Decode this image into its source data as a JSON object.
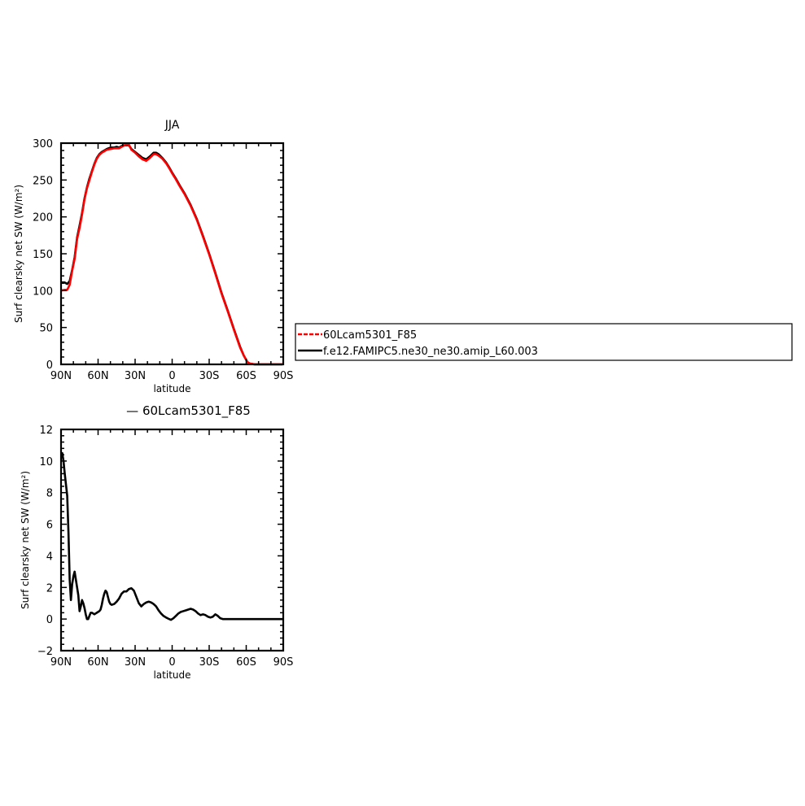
{
  "chart_data": [
    {
      "type": "line",
      "title": "JJA",
      "xlabel": "latitude",
      "ylabel": "Surf clearsky net SW (W/m²)",
      "xlim": [
        90,
        -90
      ],
      "ylim": [
        0,
        300
      ],
      "x_ticks": [
        90,
        60,
        30,
        0,
        -30,
        -60,
        -90
      ],
      "x_tick_labels": [
        "90N",
        "60N",
        "30N",
        "0",
        "30S",
        "60S",
        "90S"
      ],
      "y_ticks": [
        0,
        50,
        100,
        150,
        200,
        250,
        300
      ],
      "y_tick_labels": [
        "0",
        "50",
        "100",
        "150",
        "200",
        "250",
        "300"
      ],
      "legend": {
        "placement": "right",
        "entries": [
          "60Lcam5301_F85",
          "f.e12.FAMIPC5.ne30_ne30.amip_L60.003"
        ]
      },
      "series": [
        {
          "name": "f.e12.FAMIPC5.ne30_ne30.amip_L60.003",
          "color": "#000000",
          "dash": "solid",
          "x": [
            89,
            87,
            85,
            83,
            81,
            79,
            77,
            75,
            73,
            71,
            69,
            67,
            65,
            63,
            61,
            59,
            57,
            55,
            53,
            50,
            47,
            45,
            43,
            40,
            37,
            35,
            33,
            30,
            27,
            24,
            21,
            18,
            15,
            13,
            11,
            8,
            5,
            2,
            0,
            -3,
            -6,
            -10,
            -15,
            -20,
            -25,
            -30,
            -35,
            -40,
            -45,
            -50,
            -55,
            -58,
            -61,
            -63,
            -65,
            -67,
            -70,
            -75,
            -80,
            -85,
            -89
          ],
          "y": [
            111,
            111,
            109,
            113,
            128,
            145,
            172,
            188,
            205,
            225,
            240,
            252,
            262,
            272,
            280,
            285,
            288,
            290,
            292,
            294,
            294,
            295,
            294,
            297,
            297,
            297,
            292,
            288,
            284,
            280,
            278,
            282,
            287,
            287,
            285,
            280,
            274,
            266,
            260,
            252,
            243,
            232,
            216,
            197,
            174,
            150,
            124,
            97,
            73,
            48,
            24,
            12,
            3,
            1,
            0.5,
            0,
            0,
            0,
            0,
            0,
            0
          ]
        },
        {
          "name": "60Lcam5301_F85",
          "color": "#ff0000",
          "dash": "dashed",
          "x": [
            89,
            87,
            85,
            83,
            81,
            79,
            77,
            75,
            73,
            71,
            69,
            67,
            65,
            63,
            61,
            59,
            57,
            55,
            53,
            50,
            47,
            45,
            43,
            40,
            37,
            35,
            33,
            30,
            27,
            24,
            21,
            18,
            15,
            13,
            11,
            8,
            5,
            2,
            0,
            -3,
            -6,
            -10,
            -15,
            -20,
            -25,
            -30,
            -35,
            -40,
            -45,
            -50,
            -55,
            -58,
            -61,
            -63,
            -65,
            -67,
            -70,
            -75,
            -80,
            -85,
            -89
          ],
          "y": [
            100.5,
            101,
            101,
            108,
            127,
            143,
            170,
            185,
            203,
            224,
            239,
            250,
            261,
            271,
            279,
            284,
            287,
            289,
            291,
            292,
            293,
            293,
            293,
            296,
            298,
            298,
            291,
            287,
            282,
            278,
            276,
            280,
            285,
            285,
            283,
            279,
            273,
            265,
            259,
            251,
            242,
            231,
            215,
            196,
            173,
            149,
            123,
            96,
            72,
            47,
            23,
            12,
            3,
            1,
            0.5,
            0,
            0,
            0,
            0,
            0,
            0
          ]
        }
      ]
    },
    {
      "type": "line",
      "title": "— 60Lcam5301_F85",
      "xlabel": "latitude",
      "ylabel": "Surf clearsky net SW (W/m²)",
      "xlim": [
        90,
        -90
      ],
      "ylim": [
        -2,
        12
      ],
      "x_ticks": [
        90,
        60,
        30,
        0,
        -30,
        -60,
        -90
      ],
      "x_tick_labels": [
        "90N",
        "60N",
        "30N",
        "0",
        "30S",
        "60S",
        "90S"
      ],
      "y_ticks": [
        -2,
        0,
        2,
        4,
        6,
        8,
        10,
        12
      ],
      "y_tick_labels": [
        "−2",
        "0",
        "2",
        "4",
        "6",
        "8",
        "10",
        "12"
      ],
      "series": [
        {
          "color": "#000000",
          "dash": "solid",
          "x": [
            89,
            88,
            87,
            86,
            85,
            84,
            83,
            82,
            81,
            80,
            79,
            78,
            77,
            76,
            75,
            74,
            73,
            72,
            71,
            70,
            69,
            68,
            67,
            66,
            65,
            64,
            63,
            62,
            61,
            60,
            59,
            58,
            57,
            56,
            55,
            54,
            53,
            52,
            51,
            50,
            49,
            47,
            45,
            43,
            41,
            39,
            37,
            35,
            33,
            31,
            29,
            27,
            25,
            23,
            21,
            19,
            17,
            15,
            13,
            11,
            9,
            7,
            5,
            3,
            1,
            -1,
            -3,
            -5,
            -7,
            -9,
            -11,
            -13,
            -15,
            -17,
            -19,
            -21,
            -23,
            -25,
            -27,
            -29,
            -31,
            -33,
            -35,
            -37,
            -39,
            -41,
            -43,
            -45,
            -47,
            -49,
            -51,
            -53,
            -55,
            -57,
            -59,
            -61,
            -63,
            -65,
            -70,
            -75,
            -80,
            -85,
            -89
          ],
          "y": [
            10.5,
            10,
            9.2,
            8.5,
            7.8,
            5.5,
            2.5,
            1.2,
            2.2,
            2.7,
            3.0,
            2.5,
            2.0,
            1.5,
            0.5,
            0.8,
            1.2,
            1.0,
            0.7,
            0.3,
            0.0,
            0.0,
            0.2,
            0.4,
            0.4,
            0.35,
            0.3,
            0.35,
            0.4,
            0.45,
            0.5,
            0.6,
            0.9,
            1.3,
            1.6,
            1.8,
            1.7,
            1.4,
            1.1,
            0.95,
            0.9,
            0.95,
            1.1,
            1.3,
            1.6,
            1.75,
            1.75,
            1.9,
            1.95,
            1.8,
            1.4,
            1.0,
            0.8,
            0.95,
            1.05,
            1.1,
            1.05,
            0.95,
            0.8,
            0.55,
            0.35,
            0.2,
            0.1,
            0.02,
            -0.05,
            0.05,
            0.2,
            0.35,
            0.45,
            0.5,
            0.55,
            0.6,
            0.65,
            0.6,
            0.5,
            0.35,
            0.25,
            0.3,
            0.25,
            0.15,
            0.1,
            0.15,
            0.3,
            0.2,
            0.05,
            0.0,
            0.0,
            0.0,
            0.0,
            0.0,
            0.0,
            0.0,
            0.0,
            0.0,
            0.0,
            0.0,
            0.0,
            0.0,
            0.0,
            0.0,
            0.0,
            0.0,
            0.0
          ]
        }
      ]
    }
  ]
}
